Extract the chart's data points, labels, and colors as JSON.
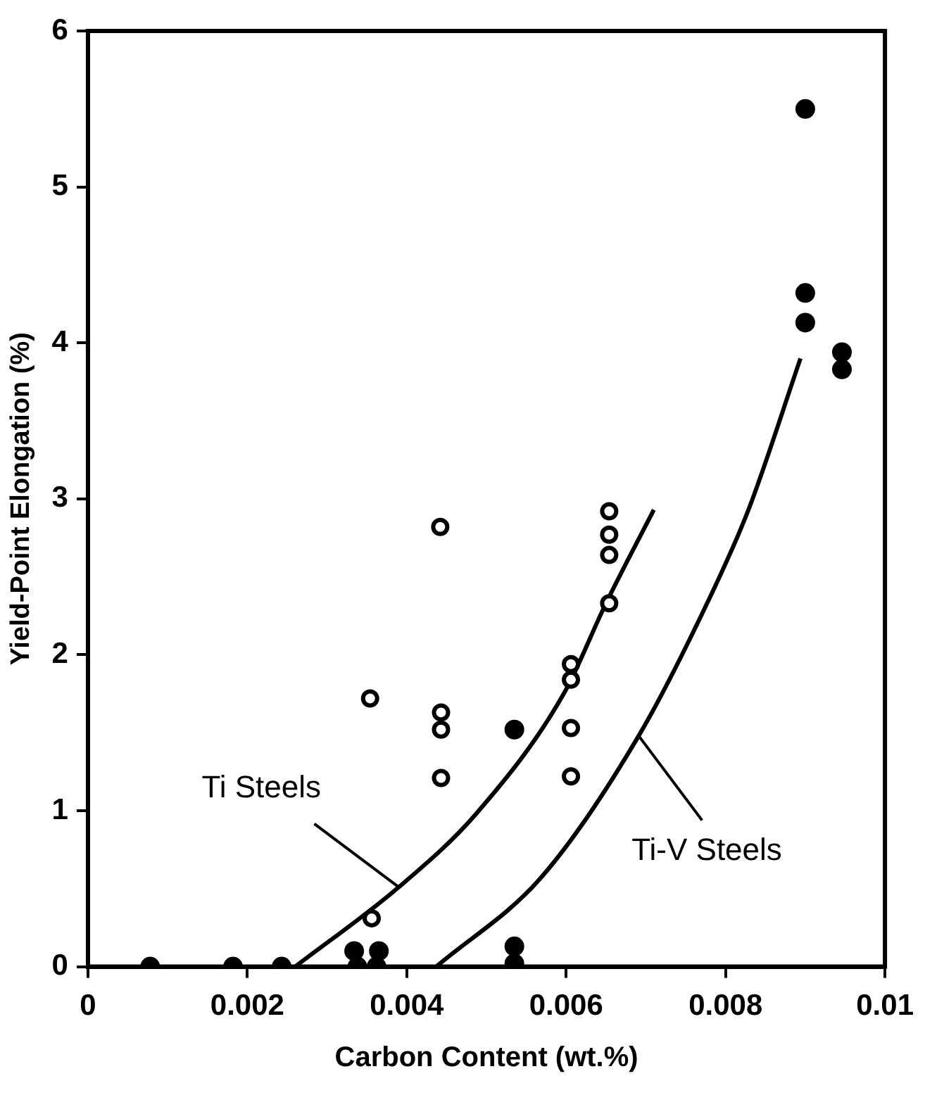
{
  "chart_data": {
    "type": "scatter",
    "xlabel": "Carbon Content (wt.%)",
    "ylabel": "Yield-Point Elongation (%)",
    "xlim": [
      0,
      0.01
    ],
    "ylim": [
      0,
      6
    ],
    "xticks": [
      0,
      0.002,
      0.004,
      0.006,
      0.008,
      0.01
    ],
    "yticks": [
      0,
      1,
      2,
      3,
      4,
      5,
      6
    ],
    "grid": false,
    "legend": false,
    "marker": "circle",
    "series": [
      {
        "color": "#000000",
        "x": [
          0.009,
          0.009,
          0.009,
          0.00946,
          0.00946,
          0.00535,
          0.00078,
          0.00182,
          0.00243,
          0.00334,
          0.00338,
          0.00365,
          0.00362,
          0.00535,
          0.00535
        ],
        "values": [
          5.5,
          4.32,
          4.13,
          3.94,
          3.83,
          1.52,
          0,
          0,
          0,
          0.1,
          0,
          0.1,
          0,
          0.13,
          0.02
        ]
      },
      {
        "color": "#000000",
        "x": [
          0.00442,
          0.00654,
          0.00654,
          0.00654,
          0.00654,
          0.00354,
          0.00443,
          0.00443,
          0.00443,
          0.00606,
          0.00606,
          0.00606,
          0.00606,
          0.00356
        ],
        "values": [
          2.82,
          2.92,
          2.77,
          2.64,
          2.33,
          1.72,
          1.63,
          1.52,
          1.21,
          1.94,
          1.84,
          1.53,
          1.22,
          0.31
        ]
      },
      {
        "type": "line",
        "color": "#000000",
        "marker": "none",
        "x": [
          0.0026,
          0.0039,
          0.00487,
          0.00597,
          0.0065,
          0.0071
        ],
        "values": [
          0,
          0.51,
          0.98,
          1.75,
          2.33,
          2.93
        ]
      },
      {
        "type": "line",
        "color": "#000000",
        "marker": "none",
        "x": [
          0.00437,
          0.0057,
          0.00691,
          0.00774,
          0.00828,
          0.00894
        ],
        "values": [
          0,
          0.58,
          1.48,
          2.3,
          2.92,
          3.9
        ]
      }
    ],
    "annotations": [
      {
        "text": "Ti Steels",
        "x": 0.0039,
        "y": 0.51
      },
      {
        "text": "Ti-V Steels",
        "x": 0.00691,
        "y": 1.48
      }
    ]
  }
}
